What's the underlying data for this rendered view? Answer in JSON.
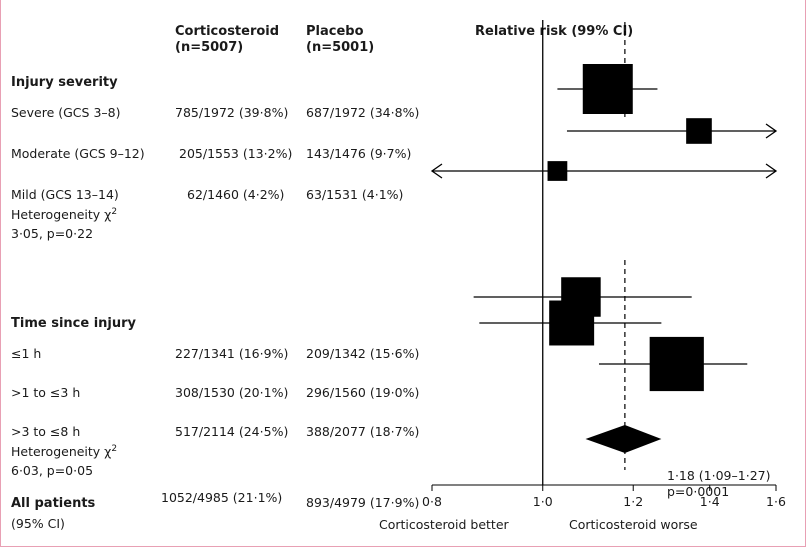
{
  "colors": {
    "frame_border": "#e8a0b4",
    "ink": "#000000",
    "text": "#1a1a1a"
  },
  "headers": {
    "cortico": "Corticosteroid",
    "cortico_n": "(n=5007)",
    "placebo": "Placebo",
    "placebo_n": "(n=5001)",
    "rr": "Relative risk (99% CI)"
  },
  "sections": {
    "injury_severity": "Injury severity",
    "time_since_injury": "Time since injury"
  },
  "rows": {
    "severe": {
      "label": "Severe (GCS 3–8)",
      "cortico": "785/1972 (39·8%)",
      "placebo": "687/1972 (34·8%)"
    },
    "moderate": {
      "label": "Moderate (GCS 9–12)",
      "cortico": "205/1553 (13·2%)",
      "placebo": "143/1476 (9·7%)"
    },
    "mild": {
      "label": "Mild (GCS 13–14)",
      "cortico": "62/1460 (4·2%)",
      "placebo": "63/1531 (4·1%)"
    },
    "t1": {
      "label": "≤1 h",
      "cortico": "227/1341 (16·9%)",
      "placebo": "209/1342 (15·6%)"
    },
    "t2": {
      "label": ">1 to ≤3 h",
      "cortico": "308/1530 (20·1%)",
      "placebo": "296/1560 (19·0%)"
    },
    "t3": {
      "label": ">3 to ≤8 h",
      "cortico": "517/2114 (24·5%)",
      "placebo": "388/2077 (18·7%)"
    },
    "all": {
      "label": "All patients",
      "cortico": "1052/4985 (21·1%)",
      "placebo": "893/4979 (17·9%)"
    }
  },
  "heterogeneity": {
    "severity": {
      "label": "Heterogeneity χ",
      "sup": "2",
      "stat": "3·05, p=0·22"
    },
    "time": {
      "label": "Heterogeneity χ",
      "sup": "2",
      "stat": "6·03, p=0·05"
    }
  },
  "all_ci_label": "(95% CI)",
  "summary_text": {
    "estimate": "1·18 (1·09–1·27)",
    "p": "p=0·0001"
  },
  "axis": {
    "tick_labels": [
      "0·8",
      "1·0",
      "1·2",
      "1·4",
      "1·6"
    ],
    "left_label": "Corticosteroid better",
    "right_label": "Corticosteroid worse"
  },
  "chart_data": {
    "type": "forest",
    "title": "Relative risk (99% CI)",
    "xlim": [
      0.8,
      1.6
    ],
    "ticks": [
      0.8,
      1.0,
      1.2,
      1.4,
      1.6
    ],
    "null_line": 1.0,
    "reference_line": 1.18,
    "x_scale": "log",
    "studies": [
      {
        "key": "severe",
        "rr": 1.14,
        "lo": 1.03,
        "hi": 1.26,
        "arrow_left": false,
        "arrow_right": false,
        "weight": 1.0
      },
      {
        "key": "moderate",
        "rr": 1.37,
        "lo": 1.05,
        "hi": 1.6,
        "arrow_left": false,
        "arrow_right": true,
        "weight": 0.42
      },
      {
        "key": "mild",
        "rr": 1.03,
        "lo": 0.8,
        "hi": 1.6,
        "arrow_left": true,
        "arrow_right": true,
        "weight": 0.28
      },
      {
        "key": "t1",
        "rr": 1.08,
        "lo": 0.87,
        "hi": 1.35,
        "arrow_left": false,
        "arrow_right": false,
        "weight": 0.75
      },
      {
        "key": "t2",
        "rr": 1.06,
        "lo": 0.88,
        "hi": 1.27,
        "arrow_left": false,
        "arrow_right": false,
        "weight": 0.88
      },
      {
        "key": "t3",
        "rr": 1.31,
        "lo": 1.12,
        "hi": 1.51,
        "arrow_left": false,
        "arrow_right": false,
        "weight": 1.1
      }
    ],
    "summary": {
      "key": "all",
      "rr": 1.18,
      "lo": 1.09,
      "hi": 1.27,
      "ci_level": "95%"
    }
  }
}
